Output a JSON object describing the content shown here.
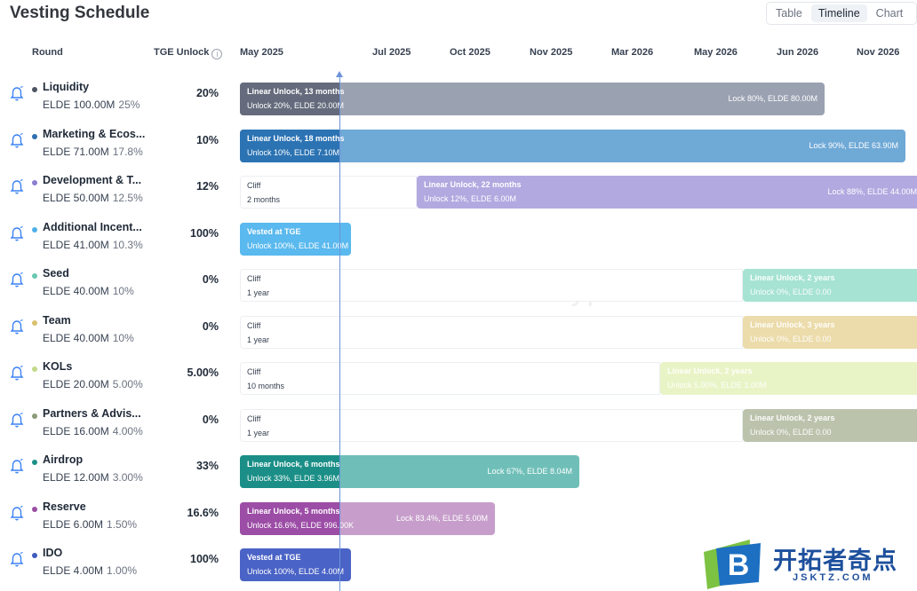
{
  "header": {
    "title": "Vesting Schedule"
  },
  "view_toggle": {
    "options": [
      "Table",
      "Timeline",
      "Chart"
    ],
    "active": "Timeline"
  },
  "columns": {
    "round": "Round",
    "tge": "TGE Unlock"
  },
  "timeline_dates": [
    "May 2025",
    "Jul 2025",
    "Oct 2025",
    "Nov 2025",
    "Mar 2026",
    "May 2026",
    "Jun 2026",
    "Nov 2026"
  ],
  "watermark": "cryptorank",
  "rounds": [
    {
      "name": "Liquidity",
      "amount": "ELDE 100.00M",
      "percent": "25%",
      "tge": "20%",
      "dot_color": "#4b5563",
      "bar": {
        "label": "Linear Unlock, 13 months",
        "sub": "Unlock 20%, ELDE 20.00M",
        "lock": "Lock 80%, ELDE 80.00M",
        "color": "#9aa1b1",
        "strong": "#656b7c"
      }
    },
    {
      "name": "Marketing & Ecos...",
      "amount": "ELDE 71.00M",
      "percent": "17.8%",
      "tge": "10%",
      "dot_color": "#2f6fb0",
      "bar": {
        "label": "Linear Unlock, 18 months",
        "sub": "Unlock 10%, ELDE 7.10M",
        "lock": "Lock 90%, ELDE 63.90M",
        "color": "#6fa9d6",
        "strong": "#2c73b3"
      }
    },
    {
      "name": "Development & T...",
      "amount": "ELDE 50.00M",
      "percent": "12.5%",
      "tge": "12%",
      "dot_color": "#8b7ed0",
      "cliff": {
        "title": "Cliff",
        "duration": "2 months"
      },
      "bar": {
        "label": "Linear Unlock, 22 months",
        "sub": "Unlock 12%, ELDE 6.00M",
        "lock": "Lock 88%, ELDE 44.00M",
        "color": "#b2a9e0"
      }
    },
    {
      "name": "Additional Incent...",
      "amount": "ELDE 41.00M",
      "percent": "10.3%",
      "tge": "100%",
      "dot_color": "#4fb0e8",
      "bar": {
        "label": "Vested at TGE",
        "sub": "Unlock 100%, ELDE 41.00M",
        "color": "#5ab9ee"
      }
    },
    {
      "name": "Seed",
      "amount": "ELDE 40.00M",
      "percent": "10%",
      "tge": "0%",
      "dot_color": "#69c9b0",
      "cliff": {
        "title": "Cliff",
        "duration": "1 year"
      },
      "bar": {
        "label": "Linear Unlock, 2 years",
        "sub": "Unlock 0%, ELDE 0.00",
        "color": "#a6e3d2"
      }
    },
    {
      "name": "Team",
      "amount": "ELDE 40.00M",
      "percent": "10%",
      "tge": "0%",
      "dot_color": "#d8c170",
      "cliff": {
        "title": "Cliff",
        "duration": "1 year"
      },
      "bar": {
        "label": "Linear Unlock, 3 years",
        "sub": "Unlock 0%, ELDE 0.00",
        "color": "#ecdcab"
      }
    },
    {
      "name": "KOLs",
      "amount": "ELDE 20.00M",
      "percent": "5.00%",
      "tge": "5.00%",
      "dot_color": "#c2d98a",
      "cliff": {
        "title": "Cliff",
        "duration": "10 months"
      },
      "bar": {
        "label": "Linear Unlock, 2 years",
        "sub": "Unlock 5.00%, ELDE 1.00M",
        "color": "#e8f4c6"
      }
    },
    {
      "name": "Partners & Advis...",
      "amount": "ELDE 16.00M",
      "percent": "4.00%",
      "tge": "0%",
      "dot_color": "#8c9a78",
      "cliff": {
        "title": "Cliff",
        "duration": "1 year"
      },
      "bar": {
        "label": "Linear Unlock, 2 years",
        "sub": "Unlock 0%, ELDE 0.00",
        "color": "#bcc3ad"
      }
    },
    {
      "name": "Airdrop",
      "amount": "ELDE 12.00M",
      "percent": "3.00%",
      "tge": "33%",
      "dot_color": "#1b8f87",
      "bar": {
        "label": "Linear Unlock, 6 months",
        "sub": "Unlock 33%, ELDE 3.96M",
        "lock": "Lock 67%, ELDE 8.04M",
        "color": "#6fbfb8",
        "strong": "#1b8f87"
      }
    },
    {
      "name": "Reserve",
      "amount": "ELDE 6.00M",
      "percent": "1.50%",
      "tge": "16.6%",
      "dot_color": "#9a4ea3",
      "bar": {
        "label": "Linear Unlock, 5 months",
        "sub": "Unlock 16.6%, ELDE 996.00K",
        "lock": "Lock 83.4%, ELDE 5.00M",
        "color": "#c79ecb",
        "strong": "#9c4da6"
      }
    },
    {
      "name": "IDO",
      "amount": "ELDE 4.00M",
      "percent": "1.00%",
      "tge": "100%",
      "dot_color": "#3f5bbd",
      "bar": {
        "label": "Vested at TGE",
        "sub": "Unlock 100%, ELDE 4.00M",
        "color": "#4a63c6"
      }
    }
  ],
  "logo": {
    "letter": "B",
    "cn": "开拓者奇点",
    "en": "JSKTZ.COM"
  }
}
